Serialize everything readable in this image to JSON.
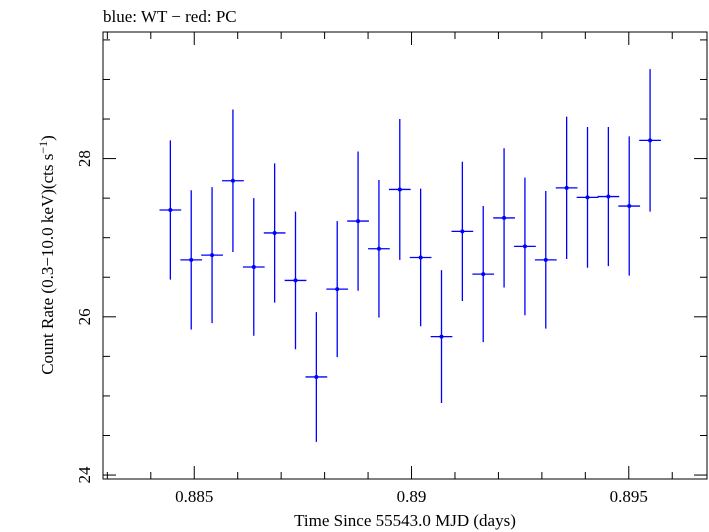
{
  "chart_data": {
    "type": "scatter",
    "title": "blue: WT − red: PC",
    "xlabel": "Time Since 55543.0 MJD (days)",
    "ylabel_main": "Count Rate (0.3−10.0 keV)(cts s",
    "ylabel_sup": "−1",
    "ylabel_end": ")",
    "xlim": [
      0.8829,
      0.8968
    ],
    "ylim": [
      23.95,
      29.6
    ],
    "x_ticks_major": [
      0.885,
      0.89,
      0.895
    ],
    "x_tick_labels": [
      "0.885",
      "0.89",
      "0.895"
    ],
    "y_ticks_major": [
      24,
      26,
      28
    ],
    "y_tick_labels": [
      "24",
      "26",
      "28"
    ],
    "grid": false,
    "series": [
      {
        "color": "#0000ff",
        "x_halfwidth": 0.00025,
        "points": [
          {
            "x": 0.88445,
            "y": 27.35,
            "err": 0.88
          },
          {
            "x": 0.88493,
            "y": 26.72,
            "err": 0.88
          },
          {
            "x": 0.88541,
            "y": 26.78,
            "err": 0.86
          },
          {
            "x": 0.88589,
            "y": 27.72,
            "err": 0.9
          },
          {
            "x": 0.88637,
            "y": 26.63,
            "err": 0.87
          },
          {
            "x": 0.88685,
            "y": 27.06,
            "err": 0.88
          },
          {
            "x": 0.88733,
            "y": 26.46,
            "err": 0.87
          },
          {
            "x": 0.88781,
            "y": 25.24,
            "err": 0.82
          },
          {
            "x": 0.88829,
            "y": 26.35,
            "err": 0.86
          },
          {
            "x": 0.88877,
            "y": 27.21,
            "err": 0.88
          },
          {
            "x": 0.88925,
            "y": 26.86,
            "err": 0.87
          },
          {
            "x": 0.88973,
            "y": 27.61,
            "err": 0.89
          },
          {
            "x": 0.89021,
            "y": 26.75,
            "err": 0.87
          },
          {
            "x": 0.89069,
            "y": 25.75,
            "err": 0.84
          },
          {
            "x": 0.89117,
            "y": 27.08,
            "err": 0.88
          },
          {
            "x": 0.89165,
            "y": 26.54,
            "err": 0.86
          },
          {
            "x": 0.89213,
            "y": 27.25,
            "err": 0.88
          },
          {
            "x": 0.89261,
            "y": 26.89,
            "err": 0.87
          },
          {
            "x": 0.89309,
            "y": 26.72,
            "err": 0.87
          },
          {
            "x": 0.89357,
            "y": 27.63,
            "err": 0.9
          },
          {
            "x": 0.89405,
            "y": 27.51,
            "err": 0.89
          },
          {
            "x": 0.89453,
            "y": 27.52,
            "err": 0.88
          },
          {
            "x": 0.89501,
            "y": 27.4,
            "err": 0.88
          },
          {
            "x": 0.89549,
            "y": 28.23,
            "err": 0.9
          }
        ]
      }
    ]
  }
}
